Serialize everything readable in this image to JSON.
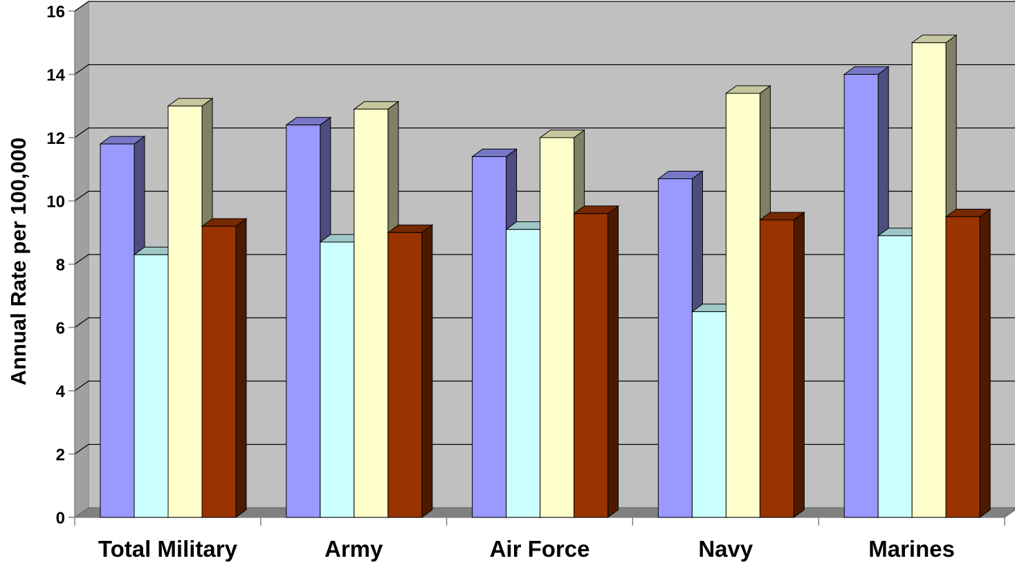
{
  "chart_data": {
    "type": "bar",
    "style": "3d-clustered-column",
    "title": "",
    "xlabel": "",
    "ylabel": "Annual Rate per 100,000",
    "ylim": [
      0,
      16
    ],
    "yticks": [
      0,
      2,
      4,
      6,
      8,
      10,
      12,
      14,
      16
    ],
    "grid": true,
    "legend": "none",
    "categories": [
      "Total Military",
      "Army",
      "Air Force",
      "Navy",
      "Marines"
    ],
    "series": [
      {
        "color": "#9999ff",
        "values": [
          11.8,
          12.4,
          11.4,
          10.7,
          14.0
        ]
      },
      {
        "color": "#ccffff",
        "values": [
          8.3,
          8.7,
          9.1,
          6.5,
          8.9
        ]
      },
      {
        "color": "#ffffcc",
        "values": [
          13.0,
          12.9,
          12.0,
          13.4,
          15.0
        ]
      },
      {
        "color": "#993300",
        "values": [
          9.2,
          9.0,
          9.6,
          9.4,
          9.5
        ]
      }
    ],
    "colors": {
      "wall": "#c0c0c0",
      "floor": "#808080",
      "gridline": "#000000",
      "axis": "#808080"
    }
  }
}
